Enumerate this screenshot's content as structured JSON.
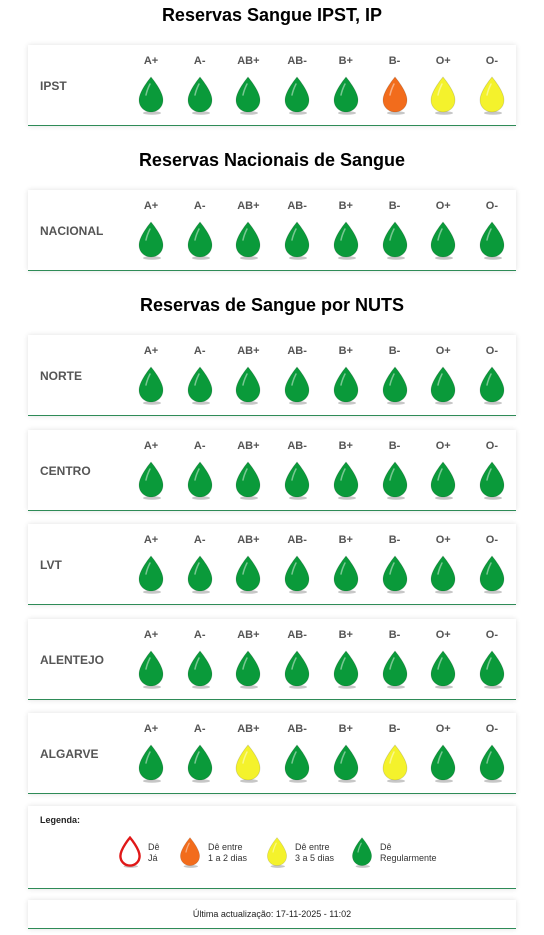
{
  "titles": {
    "ipst": "Reservas Sangue IPST, IP",
    "nacional": "Reservas Nacionais de Sangue",
    "nuts": "Reservas de Sangue por NUTS"
  },
  "blood_types": [
    "A+",
    "A-",
    "AB+",
    "AB-",
    "B+",
    "B-",
    "O+",
    "O-"
  ],
  "colors": {
    "green": "#0a9a3a",
    "yellow": "#f4f22c",
    "orange": "#f26c1c",
    "red": "#e01818"
  },
  "regions": [
    {
      "name": "IPST",
      "levels": [
        "green",
        "green",
        "green",
        "green",
        "green",
        "orange",
        "yellow",
        "yellow"
      ]
    },
    {
      "name": "NACIONAL",
      "levels": [
        "green",
        "green",
        "green",
        "green",
        "green",
        "green",
        "green",
        "green"
      ]
    },
    {
      "name": "NORTE",
      "levels": [
        "green",
        "green",
        "green",
        "green",
        "green",
        "green",
        "green",
        "green"
      ]
    },
    {
      "name": "CENTRO",
      "levels": [
        "green",
        "green",
        "green",
        "green",
        "green",
        "green",
        "green",
        "green"
      ]
    },
    {
      "name": "LVT",
      "levels": [
        "green",
        "green",
        "green",
        "green",
        "green",
        "green",
        "green",
        "green"
      ]
    },
    {
      "name": "ALENTEJO",
      "levels": [
        "green",
        "green",
        "green",
        "green",
        "green",
        "green",
        "green",
        "green"
      ]
    },
    {
      "name": "ALGARVE",
      "levels": [
        "green",
        "green",
        "yellow",
        "green",
        "green",
        "yellow",
        "green",
        "green"
      ]
    }
  ],
  "legend": {
    "title": "Legenda:",
    "items": [
      {
        "level": "red",
        "text": "Dê\nJá"
      },
      {
        "level": "orange",
        "text": "Dê entre\n1 a 2 dias"
      },
      {
        "level": "yellow",
        "text": "Dê entre\n3 a 5 dias"
      },
      {
        "level": "green",
        "text": "Dê\nRegularmente"
      }
    ]
  },
  "update": {
    "text": "Última actualização: 17-11-2025 - 11:02"
  }
}
